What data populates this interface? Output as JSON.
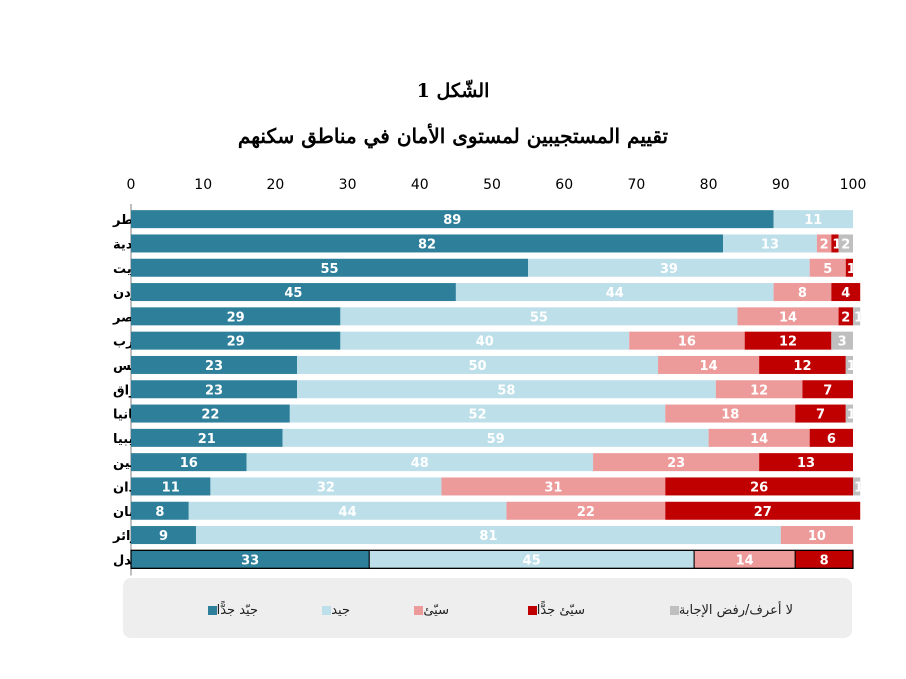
{
  "chart_data": {
    "type": "bar",
    "orientation": "horizontal-stacked",
    "figure_number": "الشّكل  1",
    "title": "تقييم المستجيبين لمستوى الأمان في مناطق سكنهم",
    "xlim": [
      0,
      100
    ],
    "xticks": [
      0,
      10,
      20,
      30,
      40,
      50,
      60,
      70,
      80,
      90,
      100
    ],
    "legend_position": "bottom",
    "categories": [
      "قطر",
      "السعودية",
      "الكويت",
      "الأردن",
      "مصر",
      "المغرب",
      "تونس",
      "العراق",
      "موريتانيا",
      "ليبيا",
      "فلسطين",
      "السودان",
      "لبنان",
      "الجزائر",
      "المعدل"
    ],
    "series": [
      {
        "name": "جيّد جدًّا",
        "color": "#2e7f9a",
        "values": [
          89,
          82,
          55,
          45,
          29,
          29,
          23,
          23,
          22,
          21,
          16,
          11,
          8,
          9,
          33
        ]
      },
      {
        "name": "جيد",
        "color": "#bcdfe9",
        "values": [
          11,
          13,
          39,
          44,
          55,
          40,
          50,
          58,
          52,
          59,
          48,
          32,
          44,
          81,
          45
        ]
      },
      {
        "name": "سيّئ",
        "color": "#ec9a9a",
        "values": [
          0,
          2,
          5,
          8,
          14,
          16,
          14,
          12,
          18,
          14,
          23,
          31,
          22,
          10,
          14
        ]
      },
      {
        "name": "سيّئ جدًّا",
        "color": "#c00000",
        "values": [
          0,
          1,
          1,
          4,
          2,
          12,
          12,
          7,
          7,
          6,
          13,
          26,
          27,
          0,
          8
        ]
      },
      {
        "name": "لا أعرف/رفض الإجابة",
        "color": "#bfbfbf",
        "values": [
          0,
          2,
          0,
          0,
          1,
          3,
          1,
          0,
          1,
          0,
          0,
          1,
          0,
          0,
          0
        ]
      }
    ],
    "data_labels": [
      [
        "89",
        "11",
        "0",
        "",
        ""
      ],
      [
        "82",
        "13",
        "2",
        "1",
        "2"
      ],
      [
        "55",
        "39",
        "5",
        "1",
        ""
      ],
      [
        "45",
        "44",
        "8",
        "4",
        ""
      ],
      [
        "29",
        "55",
        "14",
        "2",
        "1"
      ],
      [
        "29",
        "40",
        "16",
        "12",
        "3"
      ],
      [
        "23",
        "50",
        "14",
        "12",
        "1"
      ],
      [
        "23",
        "58",
        "12",
        "7",
        ""
      ],
      [
        "22",
        "52",
        "18",
        "7",
        "1"
      ],
      [
        "21",
        "59",
        "14",
        "6",
        "0"
      ],
      [
        "16",
        "48",
        "23",
        "13",
        ""
      ],
      [
        "11",
        "32",
        "31",
        "26",
        "1"
      ],
      [
        "8",
        "44",
        "22",
        "27",
        "0"
      ],
      [
        "9",
        "81",
        "10",
        "",
        ""
      ],
      [
        "33",
        "45",
        "14",
        "8",
        "0"
      ]
    ]
  }
}
